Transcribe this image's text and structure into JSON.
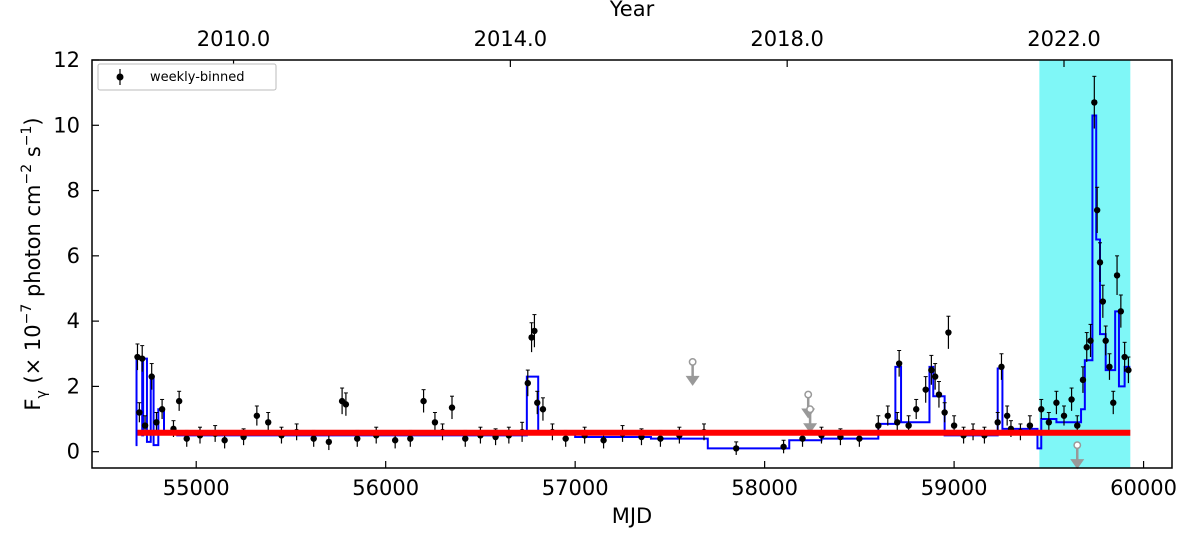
{
  "chart_data": {
    "type": "scatter",
    "xlabel": "MJD",
    "ylabel_parts": {
      "main": "F",
      "sub": "γ",
      "rest1": " (× 10",
      "sup1": "−7",
      "rest2": " photon cm",
      "sup2": "−2",
      "rest3": " s",
      "sup3": "−1",
      "rest4": ")"
    },
    "top_axis_label": "Year",
    "xlim": [
      54450,
      60150
    ],
    "ylim": [
      -0.5,
      12
    ],
    "x_ticks": [
      55000,
      56000,
      57000,
      58000,
      59000,
      60000
    ],
    "x_tick_labels": [
      "55000",
      "56000",
      "57000",
      "58000",
      "59000",
      "60000"
    ],
    "y_ticks": [
      0,
      2,
      4,
      6,
      8,
      10,
      12
    ],
    "y_tick_labels": [
      "0",
      "2",
      "4",
      "6",
      "8",
      "10",
      "12"
    ],
    "top_ticks_mjd": [
      55197,
      56658,
      58119,
      59580
    ],
    "top_tick_labels": [
      "2010.0",
      "2014.0",
      "2018.0",
      "2022.0"
    ],
    "legend": {
      "label": "weekly-binned",
      "placement": "top-left"
    },
    "highlight_span": {
      "x0": 59450,
      "x1": 59930,
      "color": "#7ff7f7"
    },
    "baseline": {
      "y": 0.58,
      "x0": 54690,
      "x1": 59930,
      "color": "#ff0000"
    },
    "series": [
      {
        "name": "weekly-binned",
        "color": "#000000",
        "points": [
          [
            54690,
            2.9,
            0.4
          ],
          [
            54700,
            1.2,
            0.3
          ],
          [
            54715,
            2.85,
            0.4
          ],
          [
            54730,
            0.8,
            0.3
          ],
          [
            54765,
            2.3,
            0.4
          ],
          [
            54790,
            0.9,
            0.3
          ],
          [
            54820,
            1.3,
            0.3
          ],
          [
            54880,
            0.7,
            0.25
          ],
          [
            54910,
            1.55,
            0.3
          ],
          [
            54950,
            0.4,
            0.25
          ],
          [
            55020,
            0.5,
            0.25
          ],
          [
            55100,
            0.55,
            0.25
          ],
          [
            55150,
            0.35,
            0.25
          ],
          [
            55250,
            0.45,
            0.25
          ],
          [
            55320,
            1.1,
            0.3
          ],
          [
            55380,
            0.9,
            0.3
          ],
          [
            55450,
            0.5,
            0.25
          ],
          [
            55530,
            0.6,
            0.25
          ],
          [
            55620,
            0.4,
            0.25
          ],
          [
            55700,
            0.3,
            0.25
          ],
          [
            55770,
            1.55,
            0.4
          ],
          [
            55790,
            1.45,
            0.35
          ],
          [
            55850,
            0.4,
            0.25
          ],
          [
            55950,
            0.5,
            0.25
          ],
          [
            56050,
            0.35,
            0.25
          ],
          [
            56130,
            0.4,
            0.25
          ],
          [
            56200,
            1.55,
            0.35
          ],
          [
            56260,
            0.9,
            0.3
          ],
          [
            56300,
            0.6,
            0.25
          ],
          [
            56350,
            1.35,
            0.35
          ],
          [
            56420,
            0.4,
            0.25
          ],
          [
            56500,
            0.5,
            0.25
          ],
          [
            56580,
            0.45,
            0.25
          ],
          [
            56650,
            0.5,
            0.25
          ],
          [
            56720,
            0.6,
            0.3
          ],
          [
            56750,
            2.1,
            0.4
          ],
          [
            56770,
            3.5,
            0.45
          ],
          [
            56785,
            3.7,
            0.5
          ],
          [
            56800,
            1.5,
            0.35
          ],
          [
            56830,
            1.3,
            0.35
          ],
          [
            56880,
            0.6,
            0.25
          ],
          [
            56950,
            0.4,
            0.25
          ],
          [
            57050,
            0.5,
            0.25
          ],
          [
            57150,
            0.35,
            0.25
          ],
          [
            57250,
            0.55,
            0.25
          ],
          [
            57350,
            0.45,
            0.25
          ],
          [
            57450,
            0.4,
            0.25
          ],
          [
            57550,
            0.5,
            0.25
          ],
          [
            57680,
            0.6,
            0.25
          ],
          [
            57850,
            0.1,
            0.2
          ],
          [
            58100,
            0.15,
            0.2
          ],
          [
            58200,
            0.4,
            0.25
          ],
          [
            58300,
            0.5,
            0.25
          ],
          [
            58400,
            0.45,
            0.25
          ],
          [
            58500,
            0.4,
            0.25
          ],
          [
            58600,
            0.8,
            0.3
          ],
          [
            58650,
            1.1,
            0.3
          ],
          [
            58700,
            0.9,
            0.3
          ],
          [
            58710,
            2.7,
            0.4
          ],
          [
            58760,
            0.8,
            0.3
          ],
          [
            58800,
            1.3,
            0.3
          ],
          [
            58850,
            1.9,
            0.4
          ],
          [
            58880,
            2.5,
            0.45
          ],
          [
            58900,
            2.3,
            0.4
          ],
          [
            58920,
            1.75,
            0.4
          ],
          [
            58950,
            1.2,
            0.3
          ],
          [
            58970,
            3.65,
            0.5
          ],
          [
            59000,
            0.8,
            0.3
          ],
          [
            59050,
            0.5,
            0.25
          ],
          [
            59100,
            0.6,
            0.25
          ],
          [
            59160,
            0.5,
            0.25
          ],
          [
            59230,
            0.9,
            0.3
          ],
          [
            59250,
            2.6,
            0.4
          ],
          [
            59280,
            1.1,
            0.3
          ],
          [
            59300,
            0.7,
            0.25
          ],
          [
            59350,
            0.6,
            0.25
          ],
          [
            59400,
            0.8,
            0.3
          ],
          [
            59460,
            1.3,
            0.3
          ],
          [
            59500,
            0.9,
            0.3
          ],
          [
            59540,
            1.5,
            0.35
          ],
          [
            59580,
            1.1,
            0.3
          ],
          [
            59620,
            1.6,
            0.35
          ],
          [
            59650,
            0.8,
            0.3
          ],
          [
            59680,
            2.2,
            0.4
          ],
          [
            59700,
            3.2,
            0.45
          ],
          [
            59720,
            3.4,
            0.5
          ],
          [
            59740,
            10.7,
            0.8
          ],
          [
            59755,
            7.4,
            0.7
          ],
          [
            59770,
            5.8,
            0.6
          ],
          [
            59785,
            4.6,
            0.5
          ],
          [
            59800,
            3.4,
            0.45
          ],
          [
            59820,
            2.6,
            0.4
          ],
          [
            59840,
            1.5,
            0.35
          ],
          [
            59860,
            5.4,
            0.6
          ],
          [
            59880,
            4.3,
            0.5
          ],
          [
            59900,
            2.9,
            0.45
          ],
          [
            59920,
            2.5,
            0.4
          ]
        ]
      },
      {
        "name": "",
        "color": "#999999",
        "upper_limits": [
          [
            57620,
            2.75
          ],
          [
            58230,
            1.75
          ],
          [
            58240,
            1.3
          ],
          [
            59650,
            0.2
          ]
        ]
      },
      {
        "name": "",
        "color": "#0000ff",
        "step": [
          [
            54680,
            0.2
          ],
          [
            54685,
            2.9
          ],
          [
            54715,
            0.5
          ],
          [
            54720,
            2.85
          ],
          [
            54740,
            0.3
          ],
          [
            54760,
            2.3
          ],
          [
            54775,
            0.2
          ],
          [
            54800,
            1.3
          ],
          [
            54830,
            0.6
          ],
          [
            54900,
            0.5
          ],
          [
            56740,
            0.5
          ],
          [
            56745,
            2.3
          ],
          [
            56805,
            0.55
          ],
          [
            57000,
            0.45
          ],
          [
            57400,
            0.4
          ],
          [
            57700,
            0.1
          ],
          [
            58130,
            0.35
          ],
          [
            58300,
            0.4
          ],
          [
            58600,
            0.85
          ],
          [
            58690,
            2.6
          ],
          [
            58720,
            0.9
          ],
          [
            58870,
            2.6
          ],
          [
            58890,
            1.7
          ],
          [
            58950,
            0.5
          ],
          [
            59230,
            2.55
          ],
          [
            59255,
            0.7
          ],
          [
            59440,
            0.1
          ],
          [
            59460,
            1.0
          ],
          [
            59540,
            0.9
          ],
          [
            59670,
            1.3
          ],
          [
            59690,
            2.8
          ],
          [
            59730,
            10.3
          ],
          [
            59750,
            6.5
          ],
          [
            59770,
            3.6
          ],
          [
            59800,
            2.5
          ],
          [
            59850,
            4.3
          ],
          [
            59870,
            2.0
          ],
          [
            59900,
            2.6
          ],
          [
            59930,
            2.6
          ]
        ]
      }
    ]
  }
}
